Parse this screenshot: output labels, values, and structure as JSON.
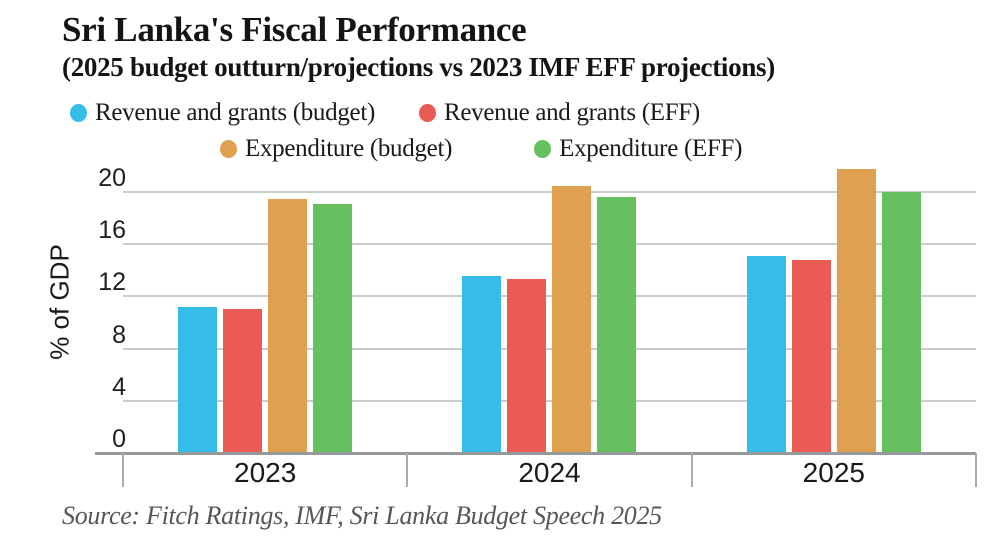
{
  "title": "Sri Lanka's Fiscal Performance",
  "subtitle": "(2025 budget outturn/projections vs 2023 IMF EFF projections)",
  "source": "Source: Fitch Ratings, IMF, Sri Lanka Budget Speech 2025",
  "colors": {
    "revenue_budget": "#36bce9",
    "revenue_eff": "#ea5b53",
    "expenditure_budget": "#dfa04f",
    "expenditure_eff": "#67c05f",
    "gridline": "#cbcccd",
    "axis_line": "#96989a",
    "source_text": "#565656"
  },
  "legend": {
    "rows": [
      [
        {
          "label": "Revenue and grants (budget)",
          "color": "#36bce9"
        },
        {
          "label": "Revenue and grants (EFF)",
          "color": "#ea5b53"
        }
      ],
      [
        {
          "label": "Expenditure (budget)",
          "color": "#dfa04f"
        },
        {
          "label": "Expenditure (EFF)",
          "color": "#67c05f"
        }
      ]
    ]
  },
  "chart_data": {
    "type": "bar",
    "title": "Sri Lanka's Fiscal Performance",
    "subtitle": "(2025 budget outturn/projections vs 2023 IMF EFF projections)",
    "categories": [
      "2023",
      "2024",
      "2025"
    ],
    "series": [
      {
        "name": "Revenue and grants (budget)",
        "color": "#36bce9",
        "values": [
          11.2,
          13.6,
          15.1
        ]
      },
      {
        "name": "Revenue and grants (EFF)",
        "color": "#ea5b53",
        "values": [
          11.0,
          13.3,
          14.8
        ]
      },
      {
        "name": "Expenditure (budget)",
        "color": "#dfa04f",
        "values": [
          19.5,
          20.5,
          21.8
        ]
      },
      {
        "name": "Expenditure (EFF)",
        "color": "#67c05f",
        "values": [
          19.1,
          19.6,
          20.0
        ]
      }
    ],
    "xlabel": "",
    "ylabel": "% of GDP",
    "yticks": [
      0,
      4,
      8,
      12,
      16,
      20
    ],
    "ylim": [
      0,
      22.4
    ],
    "grid": true,
    "legend_position": "top"
  }
}
